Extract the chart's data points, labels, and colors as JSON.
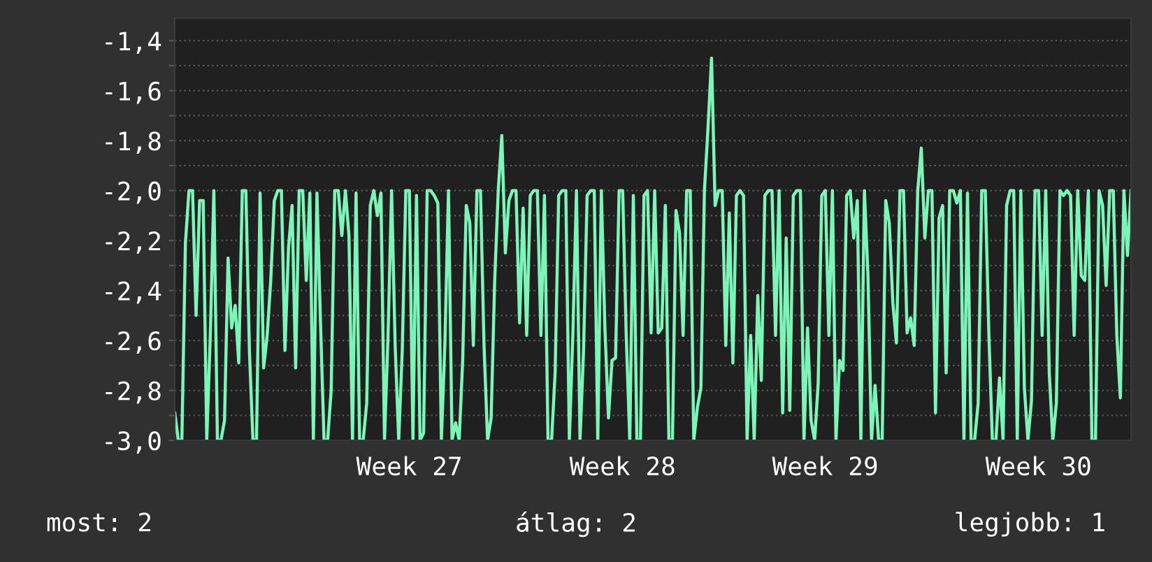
{
  "chart_data": {
    "type": "line",
    "ylim": [
      -3.0,
      -1.31
    ],
    "grid": "y",
    "legend": false,
    "marker": "none",
    "line_style": "solid",
    "categories": [
      null,
      null,
      null,
      null,
      null,
      null,
      null,
      null,
      null,
      null,
      null,
      null,
      null,
      null,
      null,
      null,
      null,
      null,
      null,
      null,
      null,
      null,
      null,
      null,
      null,
      null,
      null,
      null,
      null,
      null,
      null,
      null,
      null,
      null,
      null,
      null,
      null,
      null,
      null,
      null,
      null,
      null,
      null,
      null,
      null,
      null,
      null,
      null,
      null,
      null,
      null,
      null,
      null,
      null,
      null,
      null,
      null,
      null,
      null,
      null,
      null,
      null,
      null,
      null,
      null,
      null,
      "Week 27",
      null,
      null,
      null,
      null,
      null,
      null,
      null,
      null,
      null,
      null,
      null,
      null,
      null,
      null,
      null,
      null,
      null,
      null,
      null,
      null,
      null,
      null,
      null,
      null,
      null,
      null,
      null,
      null,
      null,
      null,
      null,
      null,
      null,
      null,
      null,
      null,
      null,
      null,
      null,
      null,
      null,
      null,
      null,
      null,
      null,
      null,
      null,
      null,
      null,
      null,
      null,
      null,
      null,
      null,
      null,
      null,
      null,
      null,
      null,
      "Week 28",
      null,
      null,
      null,
      null,
      null,
      null,
      null,
      null,
      null,
      null,
      null,
      null,
      null,
      null,
      null,
      null,
      null,
      null,
      null,
      null,
      null,
      null,
      null,
      null,
      null,
      null,
      null,
      null,
      null,
      null,
      null,
      null,
      null,
      null,
      null,
      null,
      null,
      null,
      null,
      null,
      null,
      null,
      null,
      null,
      null,
      null,
      null,
      null,
      null,
      null,
      null,
      null,
      null,
      null,
      null,
      null,
      "Week 29",
      null,
      null,
      null,
      null,
      null,
      null,
      null,
      null,
      null,
      null,
      null,
      null,
      null,
      null,
      null,
      null,
      null,
      null,
      null,
      null,
      null,
      null,
      null,
      null,
      null,
      null,
      null,
      null,
      null,
      null,
      null,
      null,
      null,
      null,
      null,
      null,
      null,
      null,
      null,
      null,
      null,
      null,
      null,
      null,
      null,
      null,
      null,
      null,
      null,
      null,
      null,
      null,
      null,
      null,
      null,
      null,
      null,
      null,
      null,
      "Week 30",
      null,
      null,
      null,
      null,
      null,
      null,
      null,
      null,
      null,
      null,
      null,
      null,
      null,
      null,
      null,
      null,
      null,
      null,
      null,
      null,
      null,
      null,
      null,
      null,
      null,
      null
    ],
    "yticks": [
      {
        "value": -3.0,
        "label": "-3,0"
      },
      {
        "value": -2.9,
        "label": null
      },
      {
        "value": -2.8,
        "label": "-2,8"
      },
      {
        "value": -2.7,
        "label": null
      },
      {
        "value": -2.6,
        "label": "-2,6"
      },
      {
        "value": -2.5,
        "label": null
      },
      {
        "value": -2.4,
        "label": "-2,4"
      },
      {
        "value": -2.3,
        "label": null
      },
      {
        "value": -2.2,
        "label": "-2,2"
      },
      {
        "value": -2.1,
        "label": null
      },
      {
        "value": -2.0,
        "label": "-2,0"
      },
      {
        "value": -1.9,
        "label": null
      },
      {
        "value": -1.8,
        "label": "-1,8"
      },
      {
        "value": -1.7,
        "label": null
      },
      {
        "value": -1.6,
        "label": "-1,6"
      },
      {
        "value": -1.5,
        "label": null
      },
      {
        "value": -1.4,
        "label": "-1,4"
      }
    ],
    "annotations": [
      "most: 2",
      "átlag: 2",
      "legjobb: 1"
    ],
    "series": [
      {
        "color": "#7ef5b8",
        "values": [
          -2.89,
          -3.0,
          -3.0,
          -2.21,
          -2.0,
          -2.0,
          -2.5,
          -2.04,
          -2.04,
          -3.0,
          -2.58,
          -2.0,
          -3.0,
          -3.0,
          -2.92,
          -2.27,
          -2.55,
          -2.46,
          -2.69,
          -2.0,
          -2.0,
          -2.64,
          -3.0,
          -3.0,
          -2.01,
          -2.71,
          -2.58,
          -2.36,
          -2.04,
          -2.0,
          -2.0,
          -2.64,
          -2.23,
          -2.06,
          -2.71,
          -2.0,
          -2.0,
          -2.36,
          -2.01,
          -3.0,
          -2.01,
          -2.53,
          -3.0,
          -3.0,
          -2.8,
          -2.0,
          -2.0,
          -2.18,
          -2.0,
          -2.18,
          -3.0,
          -2.01,
          -3.0,
          -3.0,
          -2.85,
          -2.06,
          -2.0,
          -2.1,
          -2.01,
          -3.0,
          -2.58,
          -2.0,
          -2.62,
          -3.0,
          -2.64,
          -2.0,
          -2.0,
          -3.0,
          -2.02,
          -3.0,
          -2.97,
          -2.0,
          -2.0,
          -2.02,
          -2.05,
          -3.0,
          -2.61,
          -2.0,
          -3.0,
          -2.93,
          -3.0,
          -2.68,
          -2.06,
          -2.13,
          -2.62,
          -2.0,
          -2.0,
          -2.62,
          -3.0,
          -2.91,
          -2.36,
          -2.0,
          -1.78,
          -2.25,
          -2.04,
          -2.0,
          -2.0,
          -2.53,
          -2.07,
          -2.58,
          -2.02,
          -2.0,
          -2.0,
          -2.58,
          -2.02,
          -3.0,
          -3.0,
          -2.73,
          -2.02,
          -2.0,
          -2.0,
          -3.0,
          -2.57,
          -2.0,
          -3.0,
          -2.64,
          -2.02,
          -2.0,
          -2.0,
          -3.0,
          -2.0,
          -2.55,
          -2.91,
          -2.68,
          -2.67,
          -2.0,
          -2.0,
          -2.58,
          -3.0,
          -2.02,
          -3.0,
          -3.0,
          -2.02,
          -2.0,
          -2.57,
          -2.0,
          -2.57,
          -2.55,
          -2.06,
          -3.0,
          -3.0,
          -2.08,
          -2.17,
          -2.58,
          -2.0,
          -2.0,
          -3.0,
          -2.87,
          -2.79,
          -2.0,
          -1.75,
          -1.47,
          -2.06,
          -2.0,
          -2.0,
          -2.62,
          -2.09,
          -2.69,
          -2.02,
          -2.0,
          -2.02,
          -3.0,
          -2.58,
          -3.0,
          -2.42,
          -2.76,
          -2.02,
          -2.0,
          -2.0,
          -2.58,
          -2.0,
          -2.89,
          -2.19,
          -2.88,
          -2.02,
          -2.0,
          -2.0,
          -3.0,
          -2.55,
          -2.92,
          -3.0,
          -2.77,
          -2.02,
          -2.0,
          -2.58,
          -2.0,
          -3.0,
          -2.68,
          -2.72,
          -2.02,
          -2.0,
          -2.19,
          -2.04,
          -3.0,
          -2.0,
          -2.34,
          -3.0,
          -2.78,
          -3.0,
          -3.0,
          -2.04,
          -2.13,
          -2.45,
          -2.61,
          -2.0,
          -2.0,
          -2.57,
          -2.51,
          -2.62,
          -2.0,
          -1.83,
          -2.19,
          -2.0,
          -2.0,
          -2.89,
          -2.11,
          -2.06,
          -2.73,
          -2.0,
          -2.0,
          -2.05,
          -2.0,
          -3.0,
          -2.01,
          -3.0,
          -3.0,
          -2.85,
          -2.0,
          -2.0,
          -2.57,
          -3.0,
          -3.0,
          -2.75,
          -3.0,
          -2.06,
          -2.0,
          -2.0,
          -3.0,
          -2.0,
          -2.79,
          -3.0,
          -2.84,
          -2.0,
          -2.0,
          -2.58,
          -2.0,
          -2.73,
          -3.0,
          -2.85,
          -2.0,
          -2.02,
          -2.0,
          -2.02,
          -2.58,
          -2.0,
          -2.34,
          -2.36,
          -2.0,
          -3.0,
          -3.0,
          -2.0,
          -2.06,
          -2.38,
          -2.0,
          -2.0,
          -2.58,
          -2.83,
          -2.0,
          -2.26,
          -2.0
        ]
      }
    ]
  }
}
